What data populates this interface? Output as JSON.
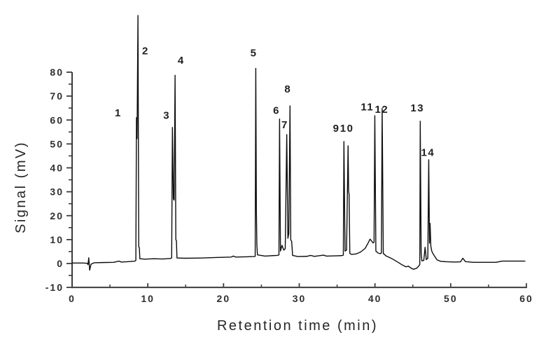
{
  "figure": {
    "background": "#ffffff",
    "trace_color": "#0d0d0d",
    "axis_color": "#3c3c3c",
    "label_color": "#2e2e2e"
  },
  "chart_data": {
    "type": "line",
    "title": "",
    "xlabel": "Retention time (min)",
    "ylabel": "Signal (mV)",
    "xlim": [
      0,
      60
    ],
    "ylim": [
      -10,
      80
    ],
    "grid": false,
    "legend": "none",
    "x_major_ticks": [
      0,
      10,
      20,
      30,
      40,
      50,
      60
    ],
    "x_minor_ticks": [
      5,
      15,
      25,
      35,
      45,
      55
    ],
    "y_major_ticks": [
      -10,
      0,
      10,
      20,
      30,
      40,
      50,
      60,
      70,
      80
    ],
    "y_minor_ticks": [
      -5,
      5,
      15,
      25,
      35,
      45,
      55,
      65,
      75
    ],
    "peaks": [
      {
        "label": "1",
        "rt": 8.5,
        "height_mv": 61,
        "label_t": 6.1,
        "label_mv": 63
      },
      {
        "label": "2",
        "rt": 8.7,
        "height_mv": 104,
        "label_t": 9.7,
        "label_mv": 89
      },
      {
        "label": "3",
        "rt": 13.2,
        "height_mv": 57,
        "label_t": 12.5,
        "label_mv": 62
      },
      {
        "label": "4",
        "rt": 13.6,
        "height_mv": 79,
        "label_t": 14.4,
        "label_mv": 85
      },
      {
        "label": "5",
        "rt": 24.3,
        "height_mv": 82,
        "label_t": 24.0,
        "label_mv": 88
      },
      {
        "label": "6",
        "rt": 27.4,
        "height_mv": 60,
        "label_t": 27.0,
        "label_mv": 64
      },
      {
        "label": "7",
        "rt": 28.4,
        "height_mv": 54,
        "label_t": 28.1,
        "label_mv": 58
      },
      {
        "label": "8",
        "rt": 28.8,
        "height_mv": 66,
        "label_t": 28.5,
        "label_mv": 73
      },
      {
        "label": "9",
        "rt": 35.9,
        "height_mv": 51,
        "label_t": 34.9,
        "label_mv": 56.5
      },
      {
        "label": "10",
        "rt": 36.5,
        "height_mv": 49,
        "label_t": 36.3,
        "label_mv": 56.5
      },
      {
        "label": "11",
        "rt": 39.8,
        "height_mv": 62,
        "label_t": 39.0,
        "label_mv": 65.5
      },
      {
        "label": "12",
        "rt": 40.9,
        "height_mv": 65,
        "label_t": 40.9,
        "label_mv": 64.5
      },
      {
        "label": "13",
        "rt": 45.9,
        "height_mv": 60,
        "label_t": 45.6,
        "label_mv": 65
      },
      {
        "label": "14",
        "rt": 47.1,
        "height_mv": 43,
        "label_t": 47.0,
        "label_mv": 46.5
      }
    ],
    "trace": [
      [
        0,
        0.2
      ],
      [
        1.5,
        0.2
      ],
      [
        2.0,
        0.1
      ],
      [
        2.1,
        -0.5
      ],
      [
        2.2,
        2.4
      ],
      [
        2.32,
        -2.8
      ],
      [
        2.5,
        -0.3
      ],
      [
        2.9,
        0.3
      ],
      [
        4,
        0.4
      ],
      [
        5.5,
        0.5
      ],
      [
        6.2,
        1.0
      ],
      [
        6.5,
        0.6
      ],
      [
        7.5,
        0.8
      ],
      [
        8.3,
        1.0
      ],
      [
        8.42,
        1.3
      ],
      [
        8.5,
        61
      ],
      [
        8.58,
        52.2
      ],
      [
        8.7,
        103.7
      ],
      [
        8.8,
        7
      ],
      [
        8.88,
        6.7
      ],
      [
        8.95,
        2.0
      ],
      [
        9.6,
        1.8
      ],
      [
        10.8,
        2.0
      ],
      [
        12.0,
        1.9
      ],
      [
        13.0,
        2.1
      ],
      [
        13.15,
        2.3
      ],
      [
        13.25,
        56.9
      ],
      [
        13.38,
        27
      ],
      [
        13.48,
        26.5
      ],
      [
        13.6,
        78.7
      ],
      [
        13.7,
        10
      ],
      [
        13.78,
        9.5
      ],
      [
        13.85,
        2.3
      ],
      [
        15,
        2.2
      ],
      [
        17,
        2.3
      ],
      [
        19,
        2.5
      ],
      [
        21,
        2.7
      ],
      [
        21.3,
        3.1
      ],
      [
        21.6,
        2.7
      ],
      [
        23,
        2.8
      ],
      [
        24.0,
        2.9
      ],
      [
        24.18,
        3.0
      ],
      [
        24.26,
        81.6
      ],
      [
        24.34,
        22
      ],
      [
        24.4,
        8
      ],
      [
        24.48,
        3.6
      ],
      [
        25.5,
        3.1
      ],
      [
        26.5,
        3.3
      ],
      [
        27.1,
        3.4
      ],
      [
        27.32,
        3.6
      ],
      [
        27.4,
        60.4
      ],
      [
        27.52,
        5.2
      ],
      [
        27.72,
        7.6
      ],
      [
        27.95,
        5.6
      ],
      [
        28.15,
        6.2
      ],
      [
        28.35,
        53.9
      ],
      [
        28.5,
        10.5
      ],
      [
        28.62,
        12.5
      ],
      [
        28.78,
        65.9
      ],
      [
        28.88,
        9.8
      ],
      [
        29.0,
        9.3
      ],
      [
        29.12,
        3.4
      ],
      [
        29.8,
        2.9
      ],
      [
        31,
        3.0
      ],
      [
        31.5,
        3.4
      ],
      [
        32,
        3.0
      ],
      [
        33.2,
        3.5
      ],
      [
        33.6,
        3.1
      ],
      [
        34.8,
        3.2
      ],
      [
        35.6,
        3.3
      ],
      [
        35.82,
        3.5
      ],
      [
        35.9,
        51.0
      ],
      [
        36.05,
        5.2
      ],
      [
        36.25,
        5.6
      ],
      [
        36.45,
        49.2
      ],
      [
        36.52,
        30
      ],
      [
        36.58,
        29
      ],
      [
        36.68,
        4.2
      ],
      [
        36.9,
        3.8
      ],
      [
        37.5,
        4.0
      ],
      [
        38.1,
        4.8
      ],
      [
        38.7,
        6.3
      ],
      [
        39.1,
        8.6
      ],
      [
        39.35,
        10.2
      ],
      [
        39.55,
        9.4
      ],
      [
        39.75,
        8.6
      ],
      [
        39.88,
        8.9
      ],
      [
        39.98,
        61.8
      ],
      [
        40.12,
        5.2
      ],
      [
        40.4,
        4.4
      ],
      [
        40.7,
        4.1
      ],
      [
        40.85,
        4.4
      ],
      [
        40.95,
        64.8
      ],
      [
        41.1,
        4.2
      ],
      [
        41.5,
        3.1
      ],
      [
        42.2,
        2.1
      ],
      [
        43.0,
        0.6
      ],
      [
        43.6,
        -0.6
      ],
      [
        44.1,
        -1.4
      ],
      [
        44.4,
        -1.1
      ],
      [
        44.8,
        -2.0
      ],
      [
        45.1,
        -2.4
      ],
      [
        45.5,
        -2.0
      ],
      [
        45.8,
        -1.0
      ],
      [
        45.92,
        -0.4
      ],
      [
        45.98,
        59.5
      ],
      [
        46.1,
        4.4
      ],
      [
        46.2,
        1.1
      ],
      [
        46.45,
        1.3
      ],
      [
        46.62,
        6.8
      ],
      [
        46.78,
        1.6
      ],
      [
        46.98,
        2.2
      ],
      [
        47.1,
        43.4
      ],
      [
        47.2,
        8.5
      ],
      [
        47.28,
        16.8
      ],
      [
        47.38,
        7.2
      ],
      [
        47.5,
        5.2
      ],
      [
        47.65,
        4.2
      ],
      [
        47.85,
        3.2
      ],
      [
        48.2,
        1.5
      ],
      [
        48.7,
        0.9
      ],
      [
        49.6,
        0.7
      ],
      [
        50.6,
        0.6
      ],
      [
        51.3,
        0.7
      ],
      [
        51.6,
        2.2
      ],
      [
        51.95,
        0.8
      ],
      [
        53,
        0.5
      ],
      [
        54.5,
        0.5
      ],
      [
        56,
        0.5
      ],
      [
        56.8,
        1.0
      ],
      [
        58,
        1.0
      ],
      [
        59.8,
        1.0
      ]
    ]
  }
}
